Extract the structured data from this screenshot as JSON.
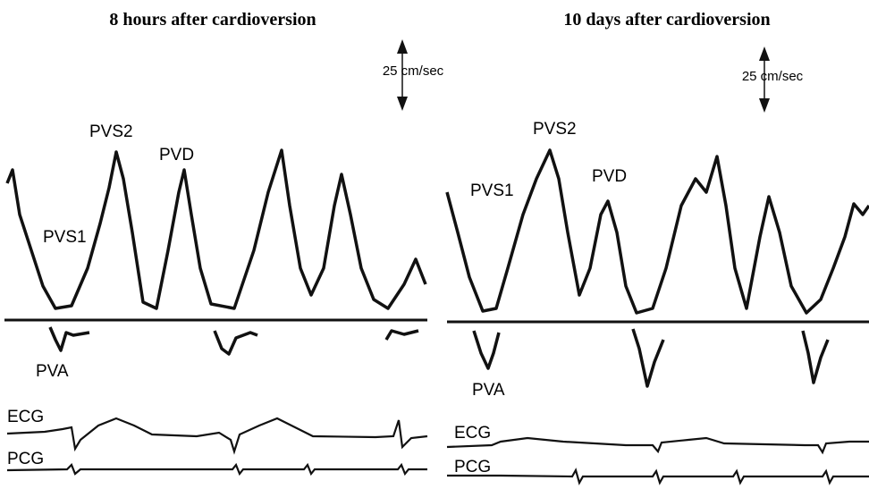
{
  "panels": [
    {
      "title": "8 hours after cardioversion",
      "scale": "25 cm/sec",
      "labels": {
        "pvs1": "PVS1",
        "pvs2": "PVS2",
        "pvd": "PVD",
        "pva": "PVA",
        "ecg": "ECG",
        "pcg": "PCG"
      }
    },
    {
      "title": "10 days after cardioversion",
      "scale": "25 cm/sec",
      "labels": {
        "pvs1": "PVS1",
        "pvs2": "PVS2",
        "pvd": "PVD",
        "pva": "PVA",
        "ecg": "ECG",
        "pcg": "PCG"
      }
    }
  ]
}
